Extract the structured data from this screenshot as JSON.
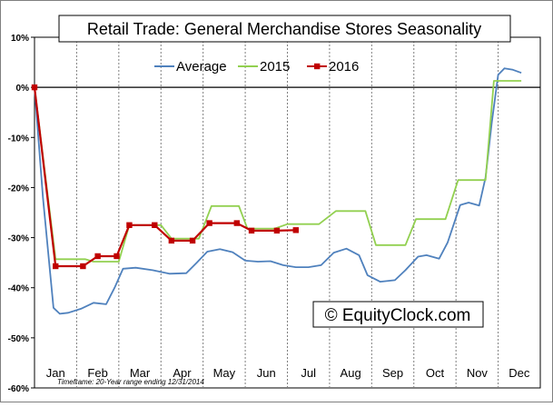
{
  "colors": {
    "background": "#ffffff",
    "plot_background": "#ffffff",
    "grid": "#7f7f7f",
    "axis": "#000000",
    "average": "#4f81bd",
    "s2015": "#92d050",
    "s2016": "#c00000"
  },
  "chart_data": {
    "type": "line",
    "title": "Retail Trade: General Merchandise Stores Seasonality",
    "xlabel": "",
    "ylabel": "",
    "categories": [
      "Jan",
      "Feb",
      "Mar",
      "Apr",
      "May",
      "Jun",
      "Jul",
      "Aug",
      "Sep",
      "Oct",
      "Nov",
      "Dec"
    ],
    "ylim": [
      -60,
      10
    ],
    "yticks": [
      {
        "value": 10,
        "label": "10%"
      },
      {
        "value": 0,
        "label": "0%"
      },
      {
        "value": -10,
        "label": "-10%"
      },
      {
        "value": -20,
        "label": "-20%"
      },
      {
        "value": -30,
        "label": "-30%"
      },
      {
        "value": -40,
        "label": "-40%"
      },
      {
        "value": -50,
        "label": "-50%"
      },
      {
        "value": -60,
        "label": "-60%"
      }
    ],
    "grid": true,
    "legend_position": "top",
    "series": [
      {
        "name": "Average",
        "color_key": "average",
        "markers": false,
        "points": [
          [
            0,
            0
          ],
          [
            0.2,
            -22
          ],
          [
            0.45,
            -44
          ],
          [
            0.6,
            -45.2
          ],
          [
            0.8,
            -45
          ],
          [
            1.1,
            -44.2
          ],
          [
            1.4,
            -43
          ],
          [
            1.7,
            -43.3
          ],
          [
            1.9,
            -40
          ],
          [
            2.1,
            -36.2
          ],
          [
            2.4,
            -36
          ],
          [
            2.8,
            -36.5
          ],
          [
            3.2,
            -37.2
          ],
          [
            3.6,
            -37.1
          ],
          [
            3.85,
            -35
          ],
          [
            4.1,
            -32.8
          ],
          [
            4.4,
            -32.3
          ],
          [
            4.7,
            -32.9
          ],
          [
            5.0,
            -34.6
          ],
          [
            5.3,
            -34.8
          ],
          [
            5.6,
            -34.7
          ],
          [
            5.9,
            -35.5
          ],
          [
            6.2,
            -35.9
          ],
          [
            6.5,
            -35.9
          ],
          [
            6.8,
            -35.5
          ],
          [
            7.1,
            -33
          ],
          [
            7.4,
            -32.2
          ],
          [
            7.7,
            -33.5
          ],
          [
            7.9,
            -37.5
          ],
          [
            8.2,
            -38.8
          ],
          [
            8.55,
            -38.5
          ],
          [
            8.8,
            -36.5
          ],
          [
            9.1,
            -33.8
          ],
          [
            9.3,
            -33.5
          ],
          [
            9.6,
            -34.2
          ],
          [
            9.8,
            -31
          ],
          [
            10.1,
            -23.5
          ],
          [
            10.3,
            -23
          ],
          [
            10.55,
            -23.6
          ],
          [
            10.7,
            -18
          ],
          [
            10.85,
            -7
          ],
          [
            11.0,
            2.5
          ],
          [
            11.15,
            3.8
          ],
          [
            11.35,
            3.5
          ],
          [
            11.55,
            2.9
          ]
        ]
      },
      {
        "name": "2015",
        "color_key": "s2015",
        "markers": false,
        "points": [
          [
            0,
            0
          ],
          [
            0.5,
            -34.3
          ],
          [
            1.2,
            -34.3
          ],
          [
            1.4,
            -34.8
          ],
          [
            2.0,
            -34.8
          ],
          [
            2.25,
            -27.5
          ],
          [
            3.0,
            -27.5
          ],
          [
            3.25,
            -30.2
          ],
          [
            3.9,
            -30.2
          ],
          [
            4.2,
            -23.7
          ],
          [
            4.85,
            -23.7
          ],
          [
            5.05,
            -28.2
          ],
          [
            5.7,
            -28.2
          ],
          [
            6.0,
            -27.3
          ],
          [
            6.75,
            -27.3
          ],
          [
            7.15,
            -24.7
          ],
          [
            7.85,
            -24.7
          ],
          [
            8.1,
            -31.5
          ],
          [
            8.8,
            -31.5
          ],
          [
            9.05,
            -26.3
          ],
          [
            9.75,
            -26.3
          ],
          [
            10.05,
            -18.5
          ],
          [
            10.7,
            -18.5
          ],
          [
            10.9,
            1.3
          ],
          [
            11.55,
            1.3
          ]
        ]
      },
      {
        "name": "2016",
        "color_key": "s2016",
        "markers": true,
        "points": [
          [
            0,
            0
          ],
          [
            0.5,
            -35.7
          ],
          [
            1.15,
            -35.7
          ],
          [
            1.5,
            -33.7
          ],
          [
            1.95,
            -33.7
          ],
          [
            2.25,
            -27.5
          ],
          [
            2.85,
            -27.5
          ],
          [
            3.25,
            -30.6
          ],
          [
            3.75,
            -30.6
          ],
          [
            4.15,
            -27.1
          ],
          [
            4.8,
            -27.1
          ],
          [
            5.15,
            -28.6
          ],
          [
            5.75,
            -28.6
          ],
          [
            6.2,
            -28.5
          ]
        ]
      }
    ]
  },
  "watermark": "© EquityClock.com",
  "footnote": "Timeframe: 20-Year range ending 12/31/2014"
}
